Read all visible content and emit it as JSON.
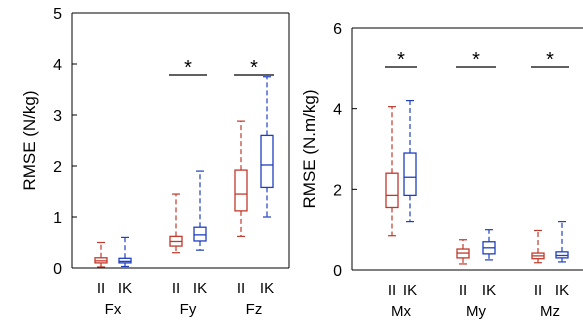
{
  "chart_data": [
    {
      "type": "box",
      "ylabel": "RMSE (N/kg)",
      "ylim": [
        0,
        5
      ],
      "yticks": [
        "0",
        "1",
        "2",
        "3",
        "4",
        "5"
      ],
      "method_labels": [
        "II",
        "IK"
      ],
      "series_colors": {
        "II": "#c0392b",
        "IK": "#1f3fbf"
      },
      "groups": [
        {
          "name": "Fx",
          "significant": false,
          "star": "",
          "boxes": [
            {
              "method": "II",
              "whisker_low": 0.02,
              "q1": 0.1,
              "median": 0.14,
              "q3": 0.2,
              "whisker_high": 0.5
            },
            {
              "method": "IK",
              "whisker_low": 0.03,
              "q1": 0.1,
              "median": 0.13,
              "q3": 0.19,
              "whisker_high": 0.6
            }
          ]
        },
        {
          "name": "Fy",
          "significant": true,
          "star": "*",
          "boxes": [
            {
              "method": "II",
              "whisker_low": 0.3,
              "q1": 0.43,
              "median": 0.52,
              "q3": 0.62,
              "whisker_high": 1.45
            },
            {
              "method": "IK",
              "whisker_low": 0.35,
              "q1": 0.53,
              "median": 0.65,
              "q3": 0.8,
              "whisker_high": 1.9
            }
          ]
        },
        {
          "name": "Fz",
          "significant": true,
          "star": "*",
          "boxes": [
            {
              "method": "II",
              "whisker_low": 0.62,
              "q1": 1.12,
              "median": 1.45,
              "q3": 1.92,
              "whisker_high": 2.88
            },
            {
              "method": "IK",
              "whisker_low": 1.0,
              "q1": 1.58,
              "median": 2.02,
              "q3": 2.6,
              "whisker_high": 3.75
            }
          ]
        }
      ]
    },
    {
      "type": "box",
      "ylabel": "RMSE (N.m/kg)",
      "ylim": [
        0,
        6
      ],
      "yticks": [
        "0",
        "2",
        "4",
        "6"
      ],
      "method_labels": [
        "II",
        "IK"
      ],
      "series_colors": {
        "II": "#c0392b",
        "IK": "#1f3fbf"
      },
      "groups": [
        {
          "name": "Mx",
          "significant": true,
          "star": "*",
          "boxes": [
            {
              "method": "II",
              "whisker_low": 0.85,
              "q1": 1.55,
              "median": 1.85,
              "q3": 2.4,
              "whisker_high": 4.05
            },
            {
              "method": "IK",
              "whisker_low": 1.2,
              "q1": 1.85,
              "median": 2.3,
              "q3": 2.9,
              "whisker_high": 4.2
            }
          ]
        },
        {
          "name": "My",
          "significant": true,
          "star": "*",
          "boxes": [
            {
              "method": "II",
              "whisker_low": 0.15,
              "q1": 0.3,
              "median": 0.42,
              "q3": 0.52,
              "whisker_high": 0.75
            },
            {
              "method": "IK",
              "whisker_low": 0.25,
              "q1": 0.4,
              "median": 0.55,
              "q3": 0.7,
              "whisker_high": 1.0
            }
          ]
        },
        {
          "name": "Mz",
          "significant": true,
          "star": "*",
          "boxes": [
            {
              "method": "II",
              "whisker_low": 0.18,
              "q1": 0.28,
              "median": 0.35,
              "q3": 0.42,
              "whisker_high": 0.98
            },
            {
              "method": "IK",
              "whisker_low": 0.2,
              "q1": 0.3,
              "median": 0.36,
              "q3": 0.45,
              "whisker_high": 1.2
            }
          ]
        }
      ]
    }
  ]
}
